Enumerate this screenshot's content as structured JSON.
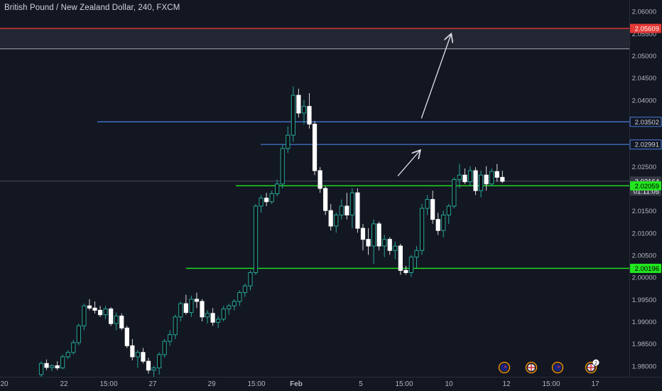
{
  "header": {
    "title": "British Pound / New Zealand Dollar, 240, FXCM"
  },
  "colors": {
    "background": "#131722",
    "up": "#26a69a",
    "down": "#ffffff",
    "support_line": "#21e51e",
    "resistance_line": "#4a7fe0",
    "target_line": "#e53935",
    "zone_fill": "#2a2e39",
    "axis_text": "#b2b5be"
  },
  "chart_data": {
    "type": "candlestick",
    "symbol": "British Pound / New Zealand Dollar",
    "interval": "240",
    "source": "FXCM",
    "y_axis": {
      "min": 1.9775,
      "max": 2.0625,
      "ticks": [
        "2.06000",
        "2.05500",
        "2.05000",
        "2.04500",
        "2.04000",
        "2.03500",
        "2.03000",
        "2.02500",
        "2.02000",
        "2.01500",
        "2.01000",
        "2.00500",
        "2.00000",
        "1.99500",
        "1.99000",
        "1.98500",
        "1.98000"
      ]
    },
    "x_axis": {
      "ticks": [
        "20",
        "22",
        "15:00",
        "27",
        "29",
        "15:00",
        "Feb",
        "5",
        "15:00",
        "10",
        "12",
        "15:00",
        "17"
      ]
    },
    "price_labels": [
      {
        "text": "2.05609",
        "kind": "target",
        "value": 2.05609
      },
      {
        "text": "2.03502",
        "kind": "resistance",
        "value": 2.03502
      },
      {
        "text": "2.02991",
        "kind": "resistance",
        "value": 2.02991
      },
      {
        "text": "2.02164",
        "kind": "current",
        "value": 2.02164
      },
      {
        "text": "01:11:05",
        "kind": "countdown",
        "value": 2.02164
      },
      {
        "text": "2.02059",
        "kind": "support",
        "value": 2.02059
      },
      {
        "text": "2.00196",
        "kind": "support",
        "value": 2.00196
      }
    ],
    "horizontal_lines": [
      {
        "name": "target",
        "value": 2.05609,
        "color": "#e53935"
      },
      {
        "name": "zone-bottom",
        "value": 2.0515,
        "color": "#8a8d96"
      },
      {
        "name": "resistance-1",
        "value": 2.03502,
        "color": "#4a7fe0"
      },
      {
        "name": "resistance-2",
        "value": 2.02991,
        "color": "#4a7fe0"
      },
      {
        "name": "support-1",
        "value": 2.02059,
        "color": "#21e51e"
      },
      {
        "name": "support-2",
        "value": 2.00196,
        "color": "#21e51e"
      }
    ],
    "zone": {
      "top": 2.05609,
      "bottom": 2.0515
    },
    "arrows": [
      {
        "from_bar": 66.5,
        "from": 2.0228,
        "to_bar": 70.6,
        "to": 2.0285
      },
      {
        "from_bar": 70.9,
        "from": 2.0358,
        "to_bar": 76.4,
        "to": 2.0547
      }
    ],
    "candles": [
      [
        1.978,
        1.981,
        1.9772,
        1.9805
      ],
      [
        1.9805,
        1.9814,
        1.979,
        1.9796
      ],
      [
        1.9796,
        1.9803,
        1.9788,
        1.98
      ],
      [
        1.98,
        1.981,
        1.979,
        1.9795
      ],
      [
        1.9795,
        1.9825,
        1.9792,
        1.982
      ],
      [
        1.982,
        1.9835,
        1.9815,
        1.983
      ],
      [
        1.983,
        1.9858,
        1.9825,
        1.9852
      ],
      [
        1.9852,
        1.9895,
        1.9846,
        1.989
      ],
      [
        1.989,
        1.994,
        1.988,
        1.9935
      ],
      [
        1.9935,
        1.995,
        1.9925,
        1.993
      ],
      [
        1.993,
        1.9945,
        1.9918,
        1.9925
      ],
      [
        1.9925,
        1.9935,
        1.991,
        1.9915
      ],
      [
        1.9915,
        1.9935,
        1.9905,
        1.9928
      ],
      [
        1.9928,
        1.9932,
        1.989,
        1.9895
      ],
      [
        1.9895,
        1.992,
        1.988,
        1.9912
      ],
      [
        1.9912,
        1.9918,
        1.988,
        1.9885
      ],
      [
        1.9885,
        1.989,
        1.984,
        1.9845
      ],
      [
        1.9845,
        1.986,
        1.9812,
        1.982
      ],
      [
        1.982,
        1.9835,
        1.9795,
        1.983
      ],
      [
        1.983,
        1.984,
        1.9805,
        1.981
      ],
      [
        1.981,
        1.9818,
        1.9782,
        1.979
      ],
      [
        1.979,
        1.98,
        1.9775,
        1.9795
      ],
      [
        1.9795,
        1.983,
        1.978,
        1.9825
      ],
      [
        1.9825,
        1.986,
        1.9818,
        1.9855
      ],
      [
        1.9855,
        1.988,
        1.9845,
        1.987
      ],
      [
        1.987,
        1.9915,
        1.986,
        1.991
      ],
      [
        1.991,
        1.9945,
        1.99,
        1.994
      ],
      [
        1.994,
        1.996,
        1.9915,
        1.992
      ],
      [
        1.992,
        1.9958,
        1.991,
        1.995
      ],
      [
        1.995,
        1.9965,
        1.993,
        1.9945
      ],
      [
        1.9945,
        1.995,
        1.99,
        1.991
      ],
      [
        1.991,
        1.9925,
        1.9895,
        1.9918
      ],
      [
        1.9918,
        1.993,
        1.989,
        1.9898
      ],
      [
        1.9898,
        1.9912,
        1.9885,
        1.9905
      ],
      [
        1.9905,
        1.9935,
        1.99,
        1.9928
      ],
      [
        1.9928,
        1.994,
        1.9915,
        1.9935
      ],
      [
        1.9935,
        1.995,
        1.9925,
        1.9945
      ],
      [
        1.9945,
        1.997,
        1.9935,
        1.9965
      ],
      [
        1.9965,
        1.9985,
        1.9955,
        1.998
      ],
      [
        1.998,
        2.0015,
        1.997,
        2.001
      ],
      [
        2.001,
        2.0165,
        2.0005,
        2.016
      ],
      [
        2.016,
        2.0185,
        2.0145,
        2.0178
      ],
      [
        2.0178,
        2.019,
        2.016,
        2.017
      ],
      [
        2.017,
        2.0195,
        2.0165,
        2.0188
      ],
      [
        2.0188,
        2.022,
        2.0182,
        2.021
      ],
      [
        2.021,
        2.03,
        2.02,
        2.029
      ],
      [
        2.029,
        2.034,
        2.028,
        2.032
      ],
      [
        2.032,
        2.043,
        2.0305,
        2.041
      ],
      [
        2.041,
        2.0425,
        2.036,
        2.037
      ],
      [
        2.037,
        2.04,
        2.0345,
        2.0385
      ],
      [
        2.0385,
        2.0415,
        2.0335,
        2.0345
      ],
      [
        2.0345,
        2.0352,
        2.023,
        2.024
      ],
      [
        2.024,
        2.0248,
        2.019,
        2.02
      ],
      [
        2.02,
        2.0205,
        2.014,
        2.015
      ],
      [
        2.015,
        2.0165,
        2.0105,
        2.0115
      ],
      [
        2.0115,
        2.0145,
        2.01,
        2.014
      ],
      [
        2.014,
        2.0175,
        2.013,
        2.016
      ],
      [
        2.016,
        2.019,
        2.013,
        2.014
      ],
      [
        2.014,
        2.02,
        2.011,
        2.019
      ],
      [
        2.019,
        2.02,
        2.01,
        2.011
      ],
      [
        2.011,
        2.012,
        2.006,
        2.0085
      ],
      [
        2.0085,
        2.011,
        2.005,
        2.007
      ],
      [
        2.007,
        2.013,
        2.003,
        2.012
      ],
      [
        2.012,
        2.0125,
        2.006,
        2.007
      ],
      [
        2.007,
        2.0095,
        2.0045,
        2.0085
      ],
      [
        2.0085,
        2.009,
        2.005,
        2.006
      ],
      [
        2.006,
        2.008,
        2.004,
        2.007
      ],
      [
        2.007,
        2.0075,
        2.0005,
        2.0015
      ],
      [
        2.0015,
        2.0025,
        2.0005,
        2.001
      ],
      [
        2.001,
        2.005,
        2.0,
        2.0045
      ],
      [
        2.0045,
        2.007,
        2.002,
        2.006
      ],
      [
        2.006,
        2.0165,
        2.005,
        2.0155
      ],
      [
        2.0155,
        2.0185,
        2.014,
        2.0175
      ],
      [
        2.0175,
        2.0195,
        2.012,
        2.013
      ],
      [
        2.013,
        2.0145,
        2.0095,
        2.0105
      ],
      [
        2.0105,
        2.015,
        2.009,
        2.014
      ],
      [
        2.014,
        2.0165,
        2.012,
        2.016
      ],
      [
        2.016,
        2.0225,
        2.0155,
        2.022
      ],
      [
        2.022,
        2.0255,
        2.02,
        2.023
      ],
      [
        2.023,
        2.0245,
        2.021,
        2.0215
      ],
      [
        2.0215,
        2.025,
        2.0205,
        2.024
      ],
      [
        2.024,
        2.0248,
        2.0185,
        2.0195
      ],
      [
        2.0195,
        2.024,
        2.018,
        2.023
      ],
      [
        2.023,
        2.025,
        2.0195,
        2.021
      ],
      [
        2.021,
        2.0245,
        2.0205,
        2.0238
      ],
      [
        2.0238,
        2.0255,
        2.0215,
        2.0225
      ],
      [
        2.0225,
        2.024,
        2.0212,
        2.0216
      ]
    ],
    "events": [
      {
        "kind": "nz-flag",
        "slot": 0
      },
      {
        "kind": "uk-flag",
        "slot": 1
      },
      {
        "kind": "nz-flag",
        "slot": 2
      },
      {
        "kind": "uk-flag",
        "slot": 3,
        "badge": "2"
      }
    ]
  }
}
